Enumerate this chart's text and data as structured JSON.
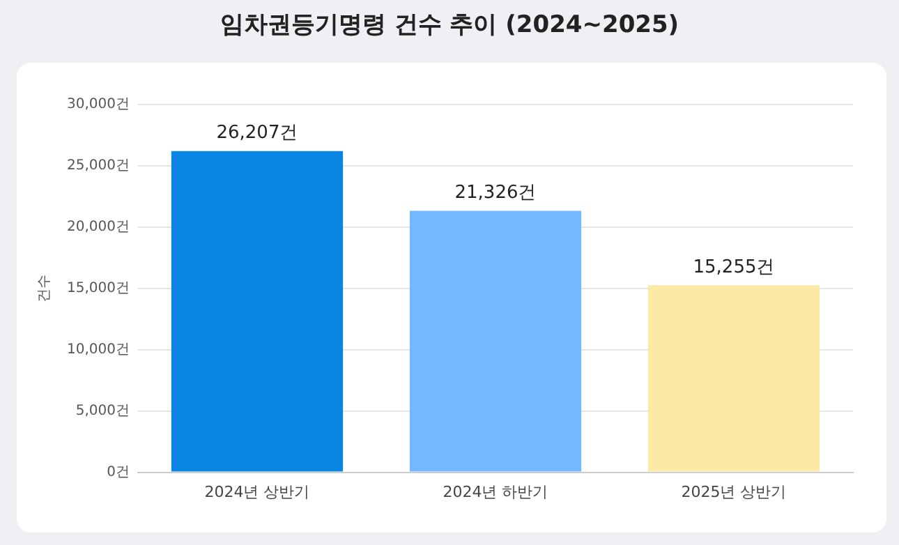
{
  "chart_data": {
    "type": "bar",
    "title": "임차권등기명령 건수 추이 (2024~2025)",
    "ylabel": "건수",
    "categories": [
      "2024년 상반기",
      "2024년 하반기",
      "2025년 상반기"
    ],
    "values": [
      26207,
      21326,
      15255
    ],
    "colors": [
      "#0a84e3",
      "#74b8ff",
      "#fde9a6"
    ],
    "value_labels": [
      "26,207건",
      "21,326건",
      "15,255건"
    ],
    "ylim": [
      0,
      30000
    ],
    "yticks": [
      {
        "value": 0,
        "label": "0건"
      },
      {
        "value": 5000,
        "label": "5,000건"
      },
      {
        "value": 10000,
        "label": "10,000건"
      },
      {
        "value": 15000,
        "label": "15,000건"
      },
      {
        "value": 20000,
        "label": "20,000건"
      },
      {
        "value": 25000,
        "label": "25,000건"
      },
      {
        "value": 30000,
        "label": "30,000건"
      }
    ],
    "grid": "y",
    "legend": false
  }
}
